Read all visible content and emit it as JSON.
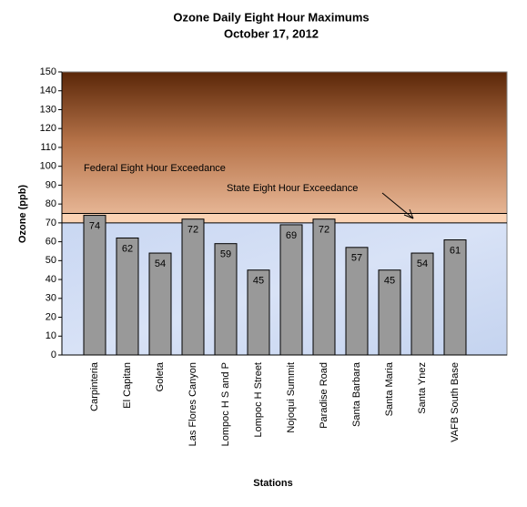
{
  "chart_data": {
    "type": "bar",
    "title": "Ozone Daily Eight Hour Maximums",
    "subtitle": "October 17, 2012",
    "y_label": "Ozone (ppb)",
    "x_label": "Stations",
    "categories": [
      "Carpinteria",
      "El Capitan",
      "Goleta",
      "Las Flores Canyon",
      "Lompoc H S and P",
      "Lompoc H Street",
      "Nojoqui Summit",
      "Paradise Road",
      "Santa Barbara",
      "Santa Maria",
      "Santa Ynez",
      "VAFB South Base"
    ],
    "values": [
      74,
      62,
      54,
      72,
      59,
      45,
      69,
      72,
      57,
      45,
      54,
      61
    ],
    "color": "#999999",
    "ylim": [
      0,
      150
    ],
    "yticks": [
      0,
      10,
      20,
      30,
      40,
      50,
      60,
      70,
      80,
      90,
      100,
      110,
      120,
      130,
      140,
      150
    ],
    "thresholds": [
      {
        "label": "Federal Eight Hour Exceedance",
        "value": 75
      },
      {
        "label": "State Eight Hour Exceedance",
        "value": 70
      }
    ]
  }
}
